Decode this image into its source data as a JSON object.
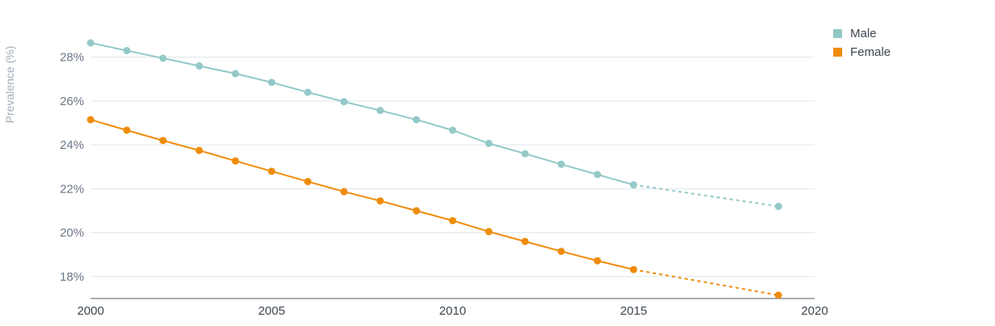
{
  "chart_data": {
    "type": "line",
    "ylabel": "Prevalence (%)",
    "xlim": [
      2000,
      2020
    ],
    "ylim": [
      17,
      29.5
    ],
    "xticks": [
      2000,
      2005,
      2010,
      2015,
      2020
    ],
    "yticks": [
      18,
      20,
      22,
      24,
      26,
      28
    ],
    "ytick_suffix": "%",
    "grid": "horizontal",
    "legend": "top-right",
    "series": [
      {
        "name": "Male",
        "color": "#93c9c8",
        "x": [
          2000,
          2001,
          2002,
          2003,
          2004,
          2005,
          2006,
          2007,
          2008,
          2009,
          2010,
          2011,
          2012,
          2013,
          2014,
          2015,
          2019
        ],
        "y": [
          28.65,
          28.3,
          27.95,
          27.6,
          27.25,
          26.85,
          26.4,
          25.97,
          25.57,
          25.15,
          24.67,
          24.07,
          23.6,
          23.12,
          22.65,
          22.18,
          21.2
        ],
        "projected_from": 2015
      },
      {
        "name": "Female",
        "color": "#ee8c0c",
        "x": [
          2000,
          2001,
          2002,
          2003,
          2004,
          2005,
          2006,
          2007,
          2008,
          2009,
          2010,
          2011,
          2012,
          2013,
          2014,
          2015,
          2019
        ],
        "y": [
          25.15,
          24.67,
          24.2,
          23.75,
          23.27,
          22.8,
          22.33,
          21.87,
          21.45,
          21.0,
          20.55,
          20.05,
          19.6,
          19.15,
          18.72,
          18.32,
          17.15
        ],
        "projected_from": 2015
      }
    ]
  }
}
